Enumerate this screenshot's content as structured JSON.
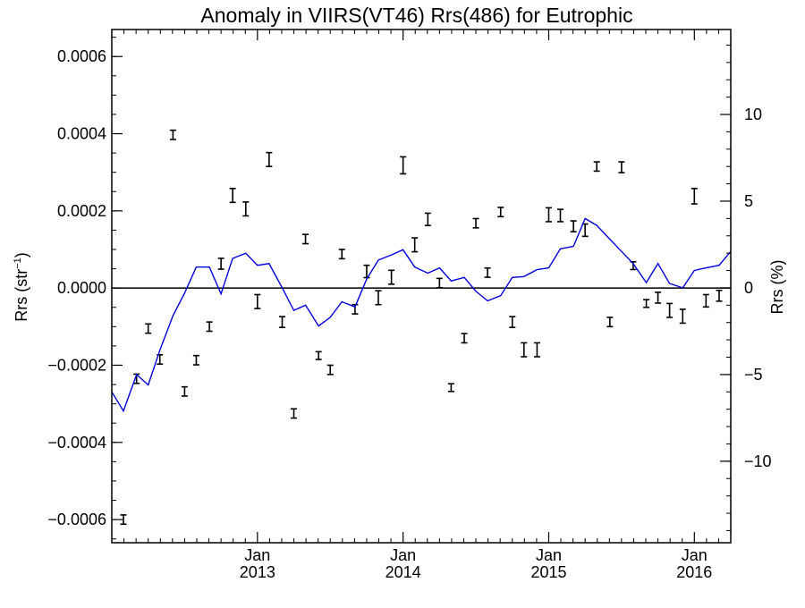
{
  "chart_data": {
    "type": "line",
    "title": "Anomaly in VIIRS(VT46) Rrs(486) for Eutrophic",
    "ylabel_left": {
      "base": "Rrs (str",
      "sup": "−1",
      "close": ")"
    },
    "ylabel_right": "Rrs (%)",
    "x_axis": {
      "range": [
        2012.0,
        2016.25
      ],
      "ticks": [
        {
          "x": 2013.0,
          "month": "Jan",
          "year": "2013"
        },
        {
          "x": 2014.0,
          "month": "Jan",
          "year": "2014"
        },
        {
          "x": 2015.0,
          "month": "Jan",
          "year": "2015"
        },
        {
          "x": 2016.0,
          "month": "Jan",
          "year": "2016"
        }
      ]
    },
    "y_left": {
      "range": [
        -0.00066,
        0.00067
      ],
      "ticks": [
        {
          "v": 0.0006,
          "label": "0.0006"
        },
        {
          "v": 0.0004,
          "label": "0.0004"
        },
        {
          "v": 0.0002,
          "label": "0.0002"
        },
        {
          "v": 0.0,
          "label": "0.0000"
        },
        {
          "v": -0.0002,
          "label": "−0.0002"
        },
        {
          "v": -0.0004,
          "label": "−0.0004"
        },
        {
          "v": -0.0006,
          "label": "−0.0006"
        }
      ]
    },
    "y_right": {
      "range": [
        -14.7,
        14.9
      ],
      "ticks": [
        {
          "v": 10,
          "label": "10"
        },
        {
          "v": 5,
          "label": "5"
        },
        {
          "v": 0,
          "label": "0"
        },
        {
          "v": -5,
          "label": "−5"
        },
        {
          "v": -10,
          "label": "−10"
        }
      ]
    },
    "zero_line": 0,
    "series": [
      {
        "type": "errorbar",
        "axis": "left",
        "color": "#000000",
        "points": [
          {
            "x": 2012.08,
            "y": -0.0006,
            "err": 1.2e-05
          },
          {
            "x": 2012.17,
            "y": -0.000235,
            "err": 1.2e-05
          },
          {
            "x": 2012.25,
            "y": -0.000105,
            "err": 1.2e-05
          },
          {
            "x": 2012.33,
            "y": -0.000185,
            "err": 1.2e-05
          },
          {
            "x": 2012.42,
            "y": 0.000397,
            "err": 1.2e-05
          },
          {
            "x": 2012.5,
            "y": -0.000268,
            "err": 1.2e-05
          },
          {
            "x": 2012.58,
            "y": -0.000187,
            "err": 1.2e-05
          },
          {
            "x": 2012.67,
            "y": -0.0001,
            "err": 1.2e-05
          },
          {
            "x": 2012.75,
            "y": 6.3e-05,
            "err": 1.4e-05
          },
          {
            "x": 2012.83,
            "y": 0.00024,
            "err": 1.8e-05
          },
          {
            "x": 2012.92,
            "y": 0.000205,
            "err": 1.8e-05
          },
          {
            "x": 2013.0,
            "y": -3.5e-05,
            "err": 1.8e-05
          },
          {
            "x": 2013.08,
            "y": 0.000333,
            "err": 1.8e-05
          },
          {
            "x": 2013.17,
            "y": -8.8e-05,
            "err": 1.4e-05
          },
          {
            "x": 2013.25,
            "y": -0.000325,
            "err": 1.2e-05
          },
          {
            "x": 2013.33,
            "y": 0.000127,
            "err": 1.2e-05
          },
          {
            "x": 2013.42,
            "y": -0.000175,
            "err": 1e-05
          },
          {
            "x": 2013.5,
            "y": -0.000212,
            "err": 1.2e-05
          },
          {
            "x": 2013.58,
            "y": 8.8e-05,
            "err": 1.2e-05
          },
          {
            "x": 2013.67,
            "y": -5.5e-05,
            "err": 1.2e-05
          },
          {
            "x": 2013.75,
            "y": 4.3e-05,
            "err": 1.6e-05
          },
          {
            "x": 2013.83,
            "y": -2.5e-05,
            "err": 1.8e-05
          },
          {
            "x": 2013.92,
            "y": 2.8e-05,
            "err": 1.8e-05
          },
          {
            "x": 2014.0,
            "y": 0.000318,
            "err": 2.2e-05
          },
          {
            "x": 2014.08,
            "y": 0.000112,
            "err": 1.8e-05
          },
          {
            "x": 2014.17,
            "y": 0.000178,
            "err": 1.6e-05
          },
          {
            "x": 2014.25,
            "y": 1.3e-05,
            "err": 1.2e-05
          },
          {
            "x": 2014.33,
            "y": -0.000258,
            "err": 1e-05
          },
          {
            "x": 2014.42,
            "y": -0.00013,
            "err": 1.2e-05
          },
          {
            "x": 2014.5,
            "y": 0.000168,
            "err": 1.2e-05
          },
          {
            "x": 2014.58,
            "y": 4e-05,
            "err": 1.2e-05
          },
          {
            "x": 2014.67,
            "y": 0.000197,
            "err": 1.2e-05
          },
          {
            "x": 2014.75,
            "y": -8.8e-05,
            "err": 1.4e-05
          },
          {
            "x": 2014.83,
            "y": -0.00016,
            "err": 1.8e-05
          },
          {
            "x": 2014.92,
            "y": -0.00016,
            "err": 1.8e-05
          },
          {
            "x": 2015.0,
            "y": 0.00019,
            "err": 1.8e-05
          },
          {
            "x": 2015.08,
            "y": 0.000188,
            "err": 1.6e-05
          },
          {
            "x": 2015.17,
            "y": 0.00016,
            "err": 1.4e-05
          },
          {
            "x": 2015.25,
            "y": 0.00015,
            "err": 1.6e-05
          },
          {
            "x": 2015.33,
            "y": 0.000315,
            "err": 1.2e-05
          },
          {
            "x": 2015.42,
            "y": -8.8e-05,
            "err": 1.2e-05
          },
          {
            "x": 2015.5,
            "y": 0.000313,
            "err": 1.4e-05
          },
          {
            "x": 2015.58,
            "y": 5.8e-05,
            "err": 1e-05
          },
          {
            "x": 2015.67,
            "y": -4e-05,
            "err": 1e-05
          },
          {
            "x": 2015.75,
            "y": -2.5e-05,
            "err": 1.4e-05
          },
          {
            "x": 2015.83,
            "y": -5.8e-05,
            "err": 1.8e-05
          },
          {
            "x": 2015.92,
            "y": -7.3e-05,
            "err": 1.8e-05
          },
          {
            "x": 2016.0,
            "y": 0.000238,
            "err": 2e-05
          },
          {
            "x": 2016.08,
            "y": -3.3e-05,
            "err": 1.6e-05
          },
          {
            "x": 2016.17,
            "y": -2e-05,
            "err": 1.4e-05
          }
        ]
      },
      {
        "type": "line",
        "axis": "right",
        "color": "#0000dd",
        "points": [
          [
            2012.0,
            -6.0
          ],
          [
            2012.08,
            -7.1
          ],
          [
            2012.17,
            -5.0
          ],
          [
            2012.25,
            -5.6
          ],
          [
            2012.33,
            -3.6
          ],
          [
            2012.42,
            -1.6
          ],
          [
            2012.5,
            -0.3
          ],
          [
            2012.58,
            1.2
          ],
          [
            2012.67,
            1.2
          ],
          [
            2012.75,
            -0.35
          ],
          [
            2012.83,
            1.7
          ],
          [
            2012.92,
            2.0
          ],
          [
            2013.0,
            1.3
          ],
          [
            2013.08,
            1.4
          ],
          [
            2013.17,
            0.0
          ],
          [
            2013.25,
            -1.3
          ],
          [
            2013.33,
            -1.0
          ],
          [
            2013.42,
            -2.2
          ],
          [
            2013.5,
            -1.7
          ],
          [
            2013.58,
            -0.8
          ],
          [
            2013.67,
            -1.1
          ],
          [
            2013.75,
            0.5
          ],
          [
            2013.83,
            1.6
          ],
          [
            2013.92,
            1.9
          ],
          [
            2014.0,
            2.2
          ],
          [
            2014.08,
            1.2
          ],
          [
            2014.17,
            0.85
          ],
          [
            2014.25,
            1.15
          ],
          [
            2014.33,
            0.4
          ],
          [
            2014.42,
            0.6
          ],
          [
            2014.5,
            -0.2
          ],
          [
            2014.58,
            -0.75
          ],
          [
            2014.67,
            -0.45
          ],
          [
            2014.75,
            0.6
          ],
          [
            2014.83,
            0.65
          ],
          [
            2014.92,
            1.05
          ],
          [
            2015.0,
            1.15
          ],
          [
            2015.08,
            2.25
          ],
          [
            2015.17,
            2.4
          ],
          [
            2015.25,
            4.0
          ],
          [
            2015.33,
            3.6
          ],
          [
            2015.42,
            2.8
          ],
          [
            2015.5,
            2.1
          ],
          [
            2015.58,
            1.4
          ],
          [
            2015.67,
            0.3
          ],
          [
            2015.75,
            1.4
          ],
          [
            2015.83,
            0.25
          ],
          [
            2015.92,
            0.0
          ],
          [
            2016.0,
            1.0
          ],
          [
            2016.08,
            1.15
          ],
          [
            2016.17,
            1.3
          ],
          [
            2016.25,
            2.1
          ]
        ]
      }
    ]
  }
}
